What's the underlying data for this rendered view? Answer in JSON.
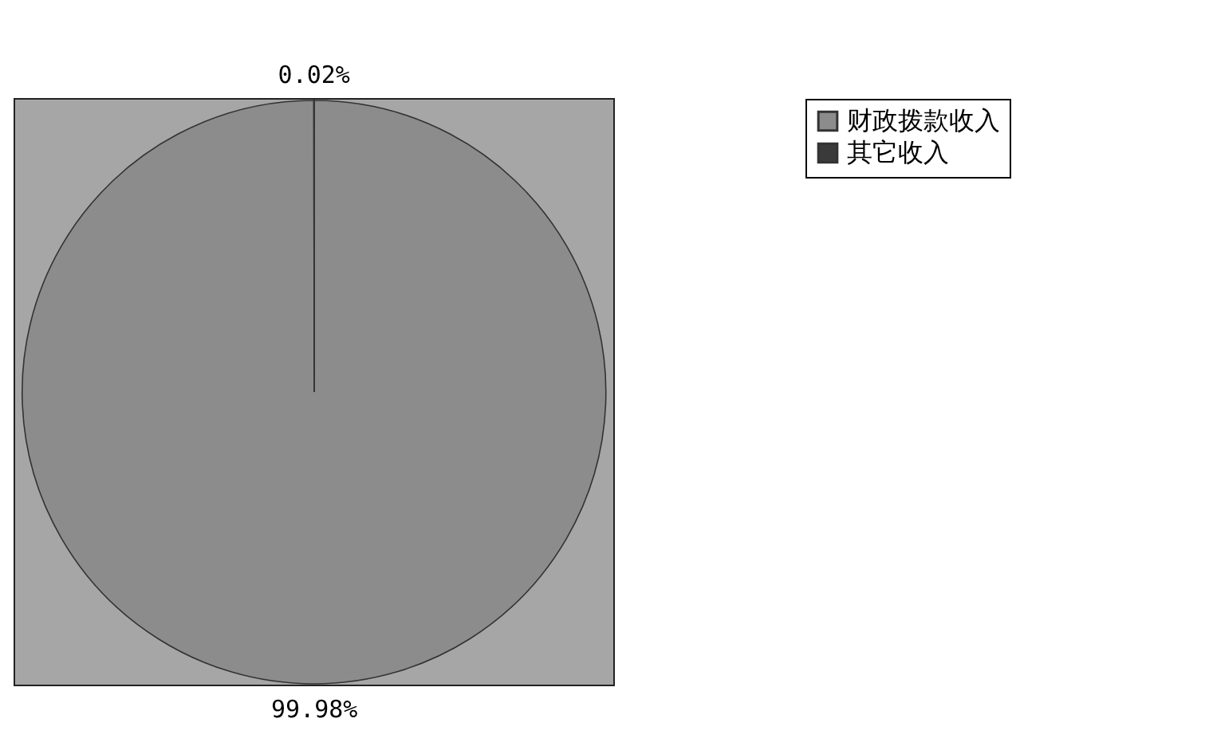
{
  "chart_data": {
    "type": "pie",
    "categories": [
      "财政拨款收入",
      "其它收入"
    ],
    "values": [
      99.98,
      0.02
    ],
    "colors": [
      "#8c8c8c",
      "#3a3a3a"
    ],
    "value_labels": [
      "99.98%",
      "0.02%"
    ],
    "legend": "right"
  }
}
